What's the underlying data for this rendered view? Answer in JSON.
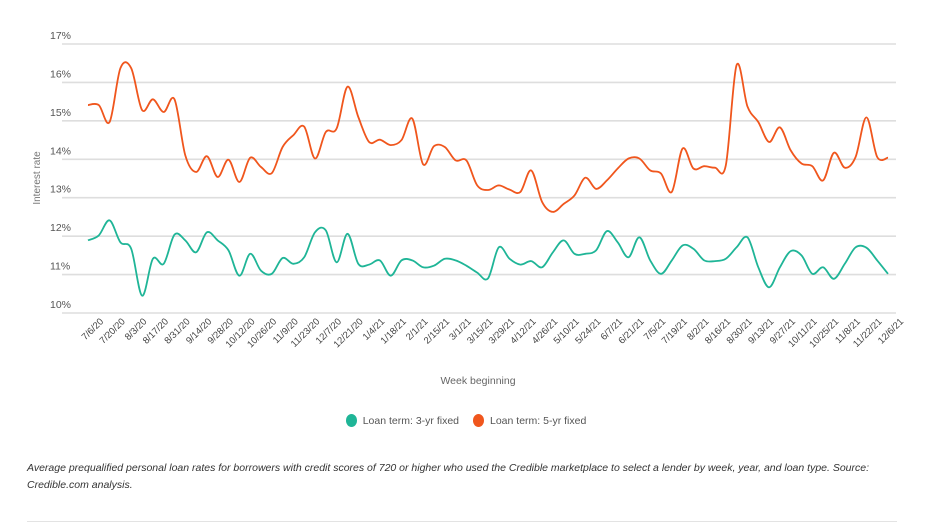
{
  "chart_data": {
    "type": "line",
    "title": "",
    "xlabel": "Week beginning",
    "ylabel": "Interest rate",
    "ylim": [
      10,
      17
    ],
    "yticks": [
      "10%",
      "11%",
      "12%",
      "13%",
      "14%",
      "15%",
      "16%",
      "17%"
    ],
    "grid": true,
    "legend_position": "bottom",
    "x": [
      "7/6/20",
      "7/13/20",
      "7/20/20",
      "7/27/20",
      "8/3/20",
      "8/10/20",
      "8/17/20",
      "8/24/20",
      "8/31/20",
      "9/7/20",
      "9/14/20",
      "9/21/20",
      "9/28/20",
      "10/5/20",
      "10/12/20",
      "10/19/20",
      "10/26/20",
      "11/2/20",
      "11/9/20",
      "11/16/20",
      "11/23/20",
      "11/30/20",
      "12/7/20",
      "12/14/20",
      "12/21/20",
      "12/28/20",
      "1/4/21",
      "1/11/21",
      "1/18/21",
      "1/25/21",
      "2/1/21",
      "2/8/21",
      "2/15/21",
      "2/22/21",
      "3/1/21",
      "3/8/21",
      "3/15/21",
      "3/22/21",
      "3/29/21",
      "4/5/21",
      "4/12/21",
      "4/19/21",
      "4/26/21",
      "5/3/21",
      "5/10/21",
      "5/17/21",
      "5/24/21",
      "5/31/21",
      "6/7/21",
      "6/14/21",
      "6/21/21",
      "6/28/21",
      "7/5/21",
      "7/12/21",
      "7/19/21",
      "7/26/21",
      "8/2/21",
      "8/9/21",
      "8/16/21",
      "8/23/21",
      "8/30/21",
      "9/6/21",
      "9/13/21",
      "9/20/21",
      "9/27/21",
      "10/4/21",
      "10/11/21",
      "10/18/21",
      "10/25/21",
      "11/1/21",
      "11/8/21",
      "11/15/21",
      "11/22/21",
      "11/29/21",
      "12/6/21"
    ],
    "xtick_labels": [
      "7/6/20",
      "7/20/20",
      "8/3/20",
      "8/17/20",
      "8/31/20",
      "9/14/20",
      "9/28/20",
      "10/12/20",
      "10/26/20",
      "11/9/20",
      "11/23/20",
      "12/7/20",
      "12/21/20",
      "1/4/21",
      "1/18/21",
      "2/1/21",
      "2/15/21",
      "3/1/21",
      "3/15/21",
      "3/29/21",
      "4/12/21",
      "4/26/21",
      "5/10/21",
      "5/24/21",
      "6/7/21",
      "6/21/21",
      "7/5/21",
      "7/19/21",
      "8/2/21",
      "8/16/21",
      "8/30/21",
      "9/13/21",
      "9/27/21",
      "10/11/21",
      "10/25/21",
      "11/8/21",
      "11/22/21",
      "12/6/21"
    ],
    "series": [
      {
        "name": "Loan term: 3-yr fixed",
        "color": "#1fb597",
        "values": [
          11.89,
          12.02,
          12.41,
          11.84,
          11.67,
          10.45,
          11.41,
          11.28,
          12.04,
          11.89,
          11.58,
          12.1,
          11.89,
          11.63,
          10.97,
          11.54,
          11.1,
          11.02,
          11.43,
          11.28,
          11.45,
          12.1,
          12.15,
          11.32,
          12.06,
          11.28,
          11.26,
          11.37,
          10.97,
          11.37,
          11.37,
          11.19,
          11.23,
          11.41,
          11.37,
          11.23,
          11.05,
          10.9,
          11.71,
          11.41,
          11.26,
          11.35,
          11.19,
          11.58,
          11.89,
          11.54,
          11.54,
          11.63,
          12.13,
          11.84,
          11.45,
          11.97,
          11.37,
          11.02,
          11.37,
          11.76,
          11.67,
          11.37,
          11.35,
          11.41,
          11.71,
          11.97,
          11.19,
          10.67,
          11.19,
          11.61,
          11.5,
          11.02,
          11.19,
          10.89,
          11.28,
          11.71,
          11.7,
          11.37,
          11.02
        ]
      },
      {
        "name": "Loan term: 5-yr fixed",
        "color": "#f0561d",
        "values": [
          15.41,
          15.41,
          14.97,
          16.37,
          16.37,
          15.28,
          15.56,
          15.23,
          15.56,
          14.1,
          13.67,
          14.08,
          13.54,
          13.99,
          13.41,
          14.04,
          13.8,
          13.64,
          14.32,
          14.63,
          14.85,
          14.02,
          14.71,
          14.8,
          15.89,
          15.1,
          14.45,
          14.51,
          14.37,
          14.5,
          15.06,
          13.87,
          14.34,
          14.32,
          13.97,
          13.97,
          13.32,
          13.2,
          13.32,
          13.21,
          13.15,
          13.71,
          12.89,
          12.63,
          12.84,
          13.06,
          13.52,
          13.23,
          13.45,
          13.76,
          14.02,
          14.02,
          13.71,
          13.63,
          13.15,
          14.28,
          13.76,
          13.82,
          13.78,
          13.84,
          16.45,
          15.37,
          14.97,
          14.45,
          14.83,
          14.23,
          13.89,
          13.82,
          13.45,
          14.17,
          13.78,
          14.06,
          15.09,
          14.06,
          14.04
        ]
      }
    ]
  },
  "caption": "Average prequalified personal loan rates for borrowers with credit scores of 720 or higher who used the Credible marketplace to select a lender by week, year, and loan type. Source: Credible.com analysis."
}
